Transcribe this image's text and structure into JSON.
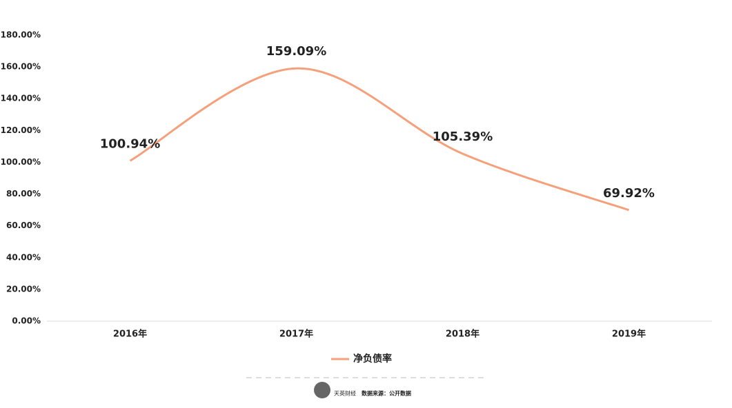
{
  "chart_data": {
    "type": "line",
    "categories": [
      "2016年",
      "2017年",
      "2018年",
      "2019年"
    ],
    "series": [
      {
        "name": "净负债率",
        "color": "#f4a07a",
        "values": [
          100.94,
          159.09,
          105.39,
          69.92
        ],
        "value_labels": [
          "100.94%",
          "159.09%",
          "105.39%",
          "69.92%"
        ]
      }
    ],
    "ylim": [
      0,
      180
    ],
    "yticks": [
      {
        "value": 0,
        "label": "0.00%"
      },
      {
        "value": 20,
        "label": "20.00%"
      },
      {
        "value": 40,
        "label": "40.00%"
      },
      {
        "value": 60,
        "label": "60.00%"
      },
      {
        "value": 80,
        "label": "80.00%"
      },
      {
        "value": 100,
        "label": "100.00%"
      },
      {
        "value": 120,
        "label": "120.00%"
      },
      {
        "value": 140,
        "label": "140.00%"
      },
      {
        "value": 160,
        "label": "160.00%"
      },
      {
        "value": 180,
        "label": "180.00%"
      }
    ],
    "value_label_color": "#c0504d",
    "legend": "bottom"
  },
  "footer": {
    "logo": "天英财经",
    "source": "数据来源：公开数据"
  }
}
